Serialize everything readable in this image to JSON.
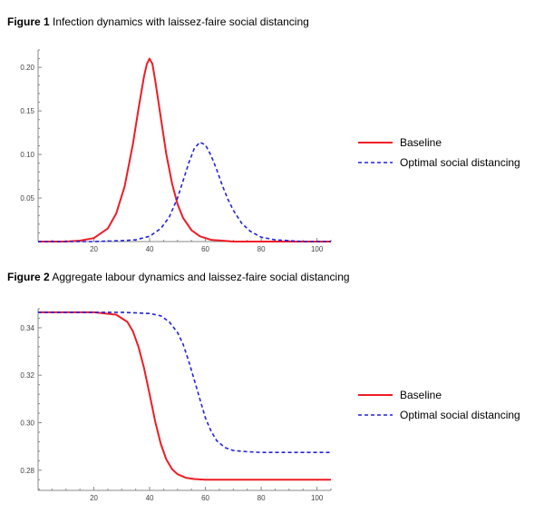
{
  "figures": [
    {
      "label": "Figure 1",
      "caption": "Infection dynamics with laissez-faire social distancing"
    },
    {
      "label": "Figure 2",
      "caption": "Aggregate labour dynamics and laissez-faire social distancing"
    }
  ],
  "chart_data": [
    {
      "type": "line",
      "title": "Figure 1 Infection dynamics with laissez-faire social distancing",
      "xlabel": "",
      "ylabel": "",
      "xlim": [
        0,
        105
      ],
      "ylim": [
        0,
        0.22
      ],
      "xticks": [
        20,
        40,
        60,
        80,
        100
      ],
      "yticks": [
        0.05,
        0.1,
        0.15,
        0.2
      ],
      "ytick_labels": [
        "0.05",
        "0.10",
        "0.15",
        "0.20"
      ],
      "legend": "right",
      "grid": false,
      "series": [
        {
          "name": "Baseline",
          "color": "#ee1c25",
          "style": "solid",
          "x": [
            0,
            10,
            15,
            20,
            25,
            28,
            31,
            34,
            36,
            38,
            39,
            40,
            41,
            42,
            44,
            46,
            48,
            50,
            52,
            55,
            58,
            62,
            66,
            70,
            80,
            90,
            105
          ],
          "y": [
            0,
            0,
            0.001,
            0.004,
            0.015,
            0.032,
            0.063,
            0.112,
            0.152,
            0.19,
            0.204,
            0.21,
            0.204,
            0.185,
            0.142,
            0.1,
            0.067,
            0.043,
            0.027,
            0.013,
            0.006,
            0.002,
            0.001,
            0,
            0,
            0,
            0
          ]
        },
        {
          "name": "Optimal social distancing",
          "color": "#2222dd",
          "style": "dashed",
          "x": [
            0,
            20,
            30,
            35,
            40,
            44,
            47,
            50,
            52,
            54,
            56,
            58,
            60,
            62,
            64,
            66,
            68,
            70,
            73,
            76,
            80,
            85,
            90,
            95,
            105
          ],
          "y": [
            0,
            0,
            0.001,
            0.002,
            0.006,
            0.015,
            0.028,
            0.05,
            0.07,
            0.09,
            0.107,
            0.114,
            0.111,
            0.099,
            0.083,
            0.065,
            0.049,
            0.036,
            0.021,
            0.012,
            0.005,
            0.002,
            0.001,
            0,
            0
          ]
        }
      ]
    },
    {
      "type": "line",
      "title": "Figure 2 Aggregate labour dynamics and laissez-faire social distancing",
      "xlabel": "",
      "ylabel": "",
      "xlim": [
        0,
        105
      ],
      "ylim": [
        0.2715,
        0.348
      ],
      "xticks": [
        20,
        40,
        60,
        80,
        100
      ],
      "yticks": [
        0.28,
        0.3,
        0.32,
        0.34
      ],
      "ytick_labels": [
        "0.28",
        "0.30",
        "0.32",
        "0.34"
      ],
      "legend": "right",
      "grid": false,
      "series": [
        {
          "name": "Baseline",
          "color": "#ee1c25",
          "style": "solid",
          "x": [
            0,
            20,
            28,
            32,
            34,
            36,
            38,
            40,
            42,
            44,
            46,
            48,
            50,
            53,
            56,
            60,
            70,
            80,
            105
          ],
          "y": [
            0.3465,
            0.3465,
            0.3455,
            0.3425,
            0.3385,
            0.332,
            0.323,
            0.312,
            0.3005,
            0.291,
            0.2845,
            0.2805,
            0.2783,
            0.2768,
            0.2763,
            0.276,
            0.276,
            0.276,
            0.276
          ]
        },
        {
          "name": "Optimal social distancing",
          "color": "#2222dd",
          "style": "dashed",
          "x": [
            0,
            30,
            40,
            44,
            47,
            50,
            52,
            54,
            56,
            58,
            60,
            62,
            64,
            67,
            70,
            75,
            80,
            90,
            105
          ],
          "y": [
            0.3465,
            0.3465,
            0.346,
            0.345,
            0.3425,
            0.338,
            0.333,
            0.326,
            0.318,
            0.31,
            0.302,
            0.2965,
            0.2925,
            0.2895,
            0.2883,
            0.2878,
            0.2875,
            0.2875,
            0.2875
          ]
        }
      ]
    }
  ]
}
